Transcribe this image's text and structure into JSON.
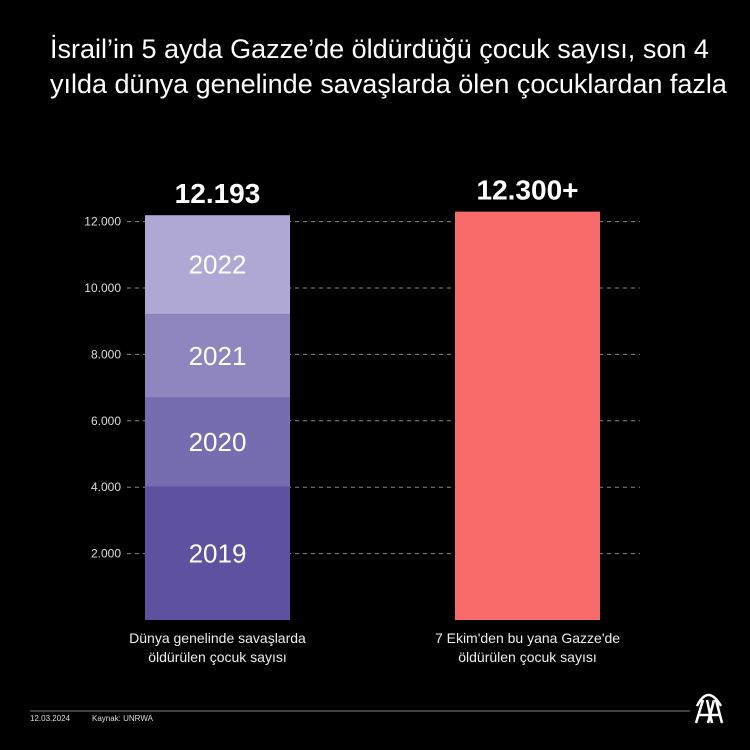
{
  "chart_data": {
    "type": "bar",
    "stacked": true,
    "title": "İsrail’in 5 ayda Gazze’de öldürdüğü çocuk sayısı, son 4 yılda dünya genelinde savaşlarda ölen çocuklardan fazla",
    "categories": [
      "Dünya genelinde savaşlarda öldürülen çocuk sayısı",
      "7 Ekim'den bu yana Gazze'de öldürülen çocuk sayısı"
    ],
    "category_lines": [
      [
        "Dünya genelinde savaşlarda",
        "öldürülen çocuk sayısı"
      ],
      [
        "7 Ekim'den bu yana Gazze'de",
        "öldürülen çocuk sayısı"
      ]
    ],
    "stacks": [
      {
        "category": 0,
        "segments": [
          {
            "label": "2019",
            "value": 4019,
            "color": "#5e52a0"
          },
          {
            "label": "2020",
            "value": 2674,
            "color": "#766cb0"
          },
          {
            "label": "2021",
            "value": 2515,
            "color": "#8f86c0"
          },
          {
            "label": "2022",
            "value": 2985,
            "color": "#b0a8d4"
          }
        ],
        "total_label": "12.193"
      },
      {
        "category": 1,
        "segments": [
          {
            "label": "",
            "value": 12300,
            "color": "#f76b6b"
          }
        ],
        "total_label": "12.300+"
      }
    ],
    "yticks": [
      2000,
      4000,
      6000,
      8000,
      10000,
      12000
    ],
    "ytick_labels": [
      "2.000",
      "4.000",
      "6.000",
      "8.000",
      "10.000",
      "12.000"
    ],
    "ylim": [
      0,
      12300
    ],
    "grid": "dashed horizontal",
    "xlabel": "",
    "ylabel": ""
  },
  "footer": {
    "date": "12.03.2024",
    "source": "Kaynak: UNRWA",
    "logo": "AA"
  }
}
